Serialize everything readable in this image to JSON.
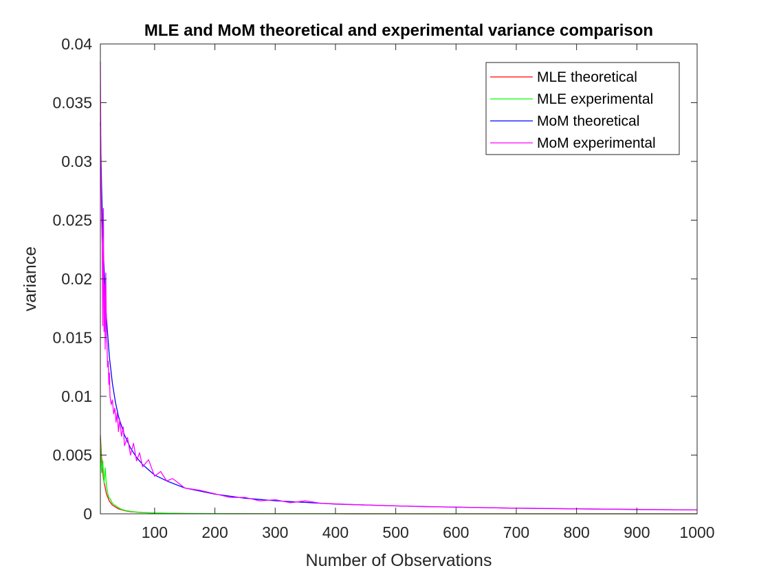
{
  "chart_data": {
    "type": "line",
    "title": "MLE and MoM theoretical and experimental variance comparison",
    "xlabel": "Number of Observations",
    "ylabel": "variance",
    "xlim": [
      10,
      1000
    ],
    "ylim": [
      0,
      0.04
    ],
    "xticks": [
      100,
      200,
      300,
      400,
      500,
      600,
      700,
      800,
      900,
      1000
    ],
    "xtick_labels": [
      "100",
      "200",
      "300",
      "400",
      "500",
      "600",
      "700",
      "800",
      "900",
      "1000"
    ],
    "yticks": [
      0,
      0.005,
      0.01,
      0.015,
      0.02,
      0.025,
      0.03,
      0.035,
      0.04
    ],
    "ytick_labels": [
      "0",
      "0.005",
      "0.01",
      "0.015",
      "0.02",
      "0.025",
      "0.03",
      "0.035",
      "0.04"
    ],
    "grid": false,
    "legend_position": "top-right",
    "series": [
      {
        "name": "MLE theoretical",
        "color": "#ff0000",
        "x": [
          10,
          12,
          15,
          20,
          25,
          30,
          40,
          50,
          60,
          80,
          100,
          150,
          200,
          300,
          400,
          500,
          600,
          700,
          800,
          900,
          1000
        ],
        "y": [
          0.0067,
          0.0047,
          0.003,
          0.0017,
          0.00107,
          0.00074,
          0.00042,
          0.00027,
          0.00019,
          0.000105,
          6.7e-05,
          3e-05,
          1.67e-05,
          7.4e-06,
          4.2e-06,
          2.7e-06,
          1.9e-06,
          1.4e-06,
          1e-06,
          8e-07,
          7e-07
        ]
      },
      {
        "name": "MLE experimental",
        "color": "#00ff00",
        "x": [
          10,
          12,
          14,
          16,
          18,
          20,
          22,
          24,
          26,
          28,
          30,
          35,
          40,
          45,
          50,
          60,
          70,
          80,
          100,
          150,
          200,
          300,
          400,
          500,
          600,
          700,
          800,
          900,
          1000
        ],
        "y": [
          0.0064,
          0.0035,
          0.0045,
          0.0026,
          0.0039,
          0.0024,
          0.0018,
          0.0014,
          0.0013,
          0.0011,
          0.0009,
          0.0007,
          0.00052,
          0.00038,
          0.0003,
          0.00021,
          0.00014,
          0.00011,
          7e-05,
          3e-05,
          1.8e-05,
          8e-06,
          5e-06,
          3e-06,
          2e-06,
          1.5e-06,
          1.2e-06,
          1e-06,
          8e-07
        ]
      },
      {
        "name": "MoM theoretical",
        "color": "#0000ff",
        "x": [
          10,
          12,
          15,
          20,
          25,
          30,
          35,
          40,
          50,
          60,
          70,
          80,
          100,
          120,
          150,
          200,
          250,
          300,
          400,
          500,
          600,
          700,
          800,
          900,
          1000
        ],
        "y": [
          0.0333,
          0.0278,
          0.0222,
          0.0167,
          0.0133,
          0.0111,
          0.0095,
          0.0083,
          0.0067,
          0.0056,
          0.0048,
          0.0042,
          0.0033,
          0.0028,
          0.0022,
          0.00167,
          0.00133,
          0.00111,
          0.00083,
          0.00067,
          0.00056,
          0.00048,
          0.00042,
          0.00037,
          0.00033
        ]
      },
      {
        "name": "MoM experimental",
        "color": "#ff00ff",
        "x": [
          10,
          11,
          12,
          13,
          14,
          15,
          16,
          17,
          18,
          19,
          20,
          21,
          22,
          23,
          24,
          25,
          26,
          28,
          30,
          32,
          34,
          36,
          38,
          40,
          42,
          45,
          48,
          50,
          55,
          60,
          65,
          70,
          75,
          80,
          90,
          100,
          110,
          120,
          130,
          150,
          175,
          200,
          225,
          250,
          275,
          300,
          325,
          350,
          375,
          400,
          450,
          500,
          550,
          600,
          650,
          700,
          750,
          800,
          850,
          900,
          950,
          1000
        ],
        "y": [
          0.0385,
          0.029,
          0.025,
          0.023,
          0.016,
          0.026,
          0.0155,
          0.0195,
          0.014,
          0.0205,
          0.015,
          0.0145,
          0.0125,
          0.013,
          0.011,
          0.012,
          0.01,
          0.0093,
          0.0097,
          0.0085,
          0.009,
          0.0078,
          0.0086,
          0.007,
          0.008,
          0.0066,
          0.0074,
          0.0058,
          0.0065,
          0.005,
          0.006,
          0.0045,
          0.0052,
          0.004,
          0.0046,
          0.0032,
          0.0036,
          0.0028,
          0.003,
          0.0022,
          0.002,
          0.0017,
          0.0014,
          0.0014,
          0.0011,
          0.0012,
          0.00095,
          0.0011,
          0.0009,
          0.00085,
          0.00075,
          0.00068,
          0.0006,
          0.00058,
          0.00052,
          0.00048,
          0.00046,
          0.00042,
          0.0004,
          0.00038,
          0.00035,
          0.00033
        ]
      }
    ]
  }
}
